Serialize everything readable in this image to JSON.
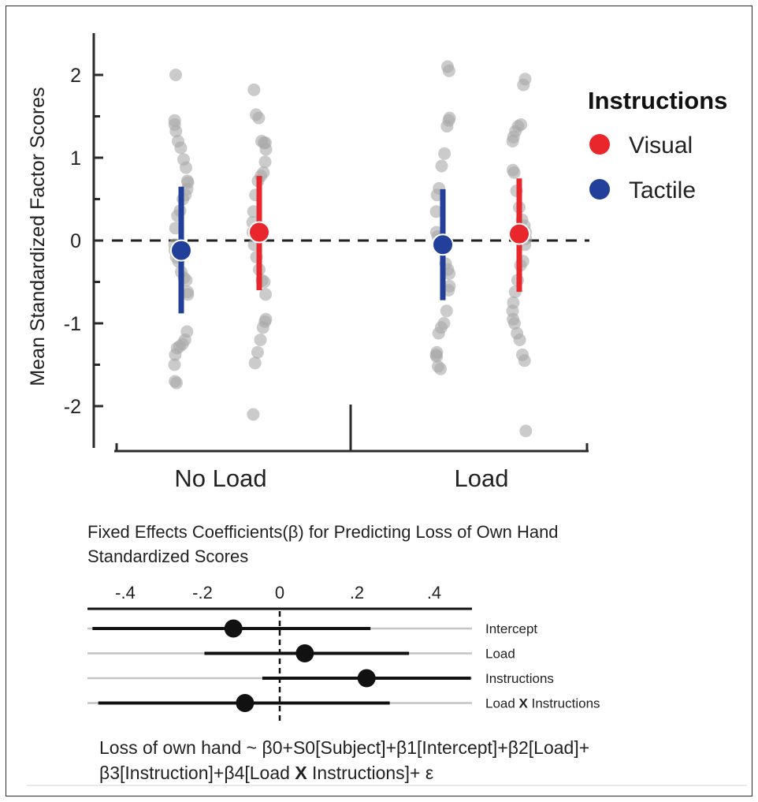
{
  "chart_data": [
    {
      "type": "scatter",
      "ylabel": "Mean  Standardized Factor Scores",
      "ylim": [
        -2.5,
        2.5
      ],
      "yticks": [
        2,
        1,
        0,
        -1,
        -2
      ],
      "ytick_labels": [
        "2",
        "1",
        "0",
        "-1",
        "-2"
      ],
      "reference_line": 0,
      "categories": [
        "No Load",
        "Load"
      ],
      "legend": {
        "title": "Instructions",
        "placement": "right",
        "entries": [
          {
            "label": "Visual",
            "color": "#e8262c"
          },
          {
            "label": "Tactile",
            "color": "#22409a"
          }
        ]
      },
      "series": [
        {
          "name": "Tactile",
          "color": "#22409a",
          "means": [
            -0.12,
            -0.05
          ],
          "ci_low": [
            -0.88,
            -0.72
          ],
          "ci_high": [
            0.65,
            0.62
          ],
          "points": [
            [
              2.0,
              1.45,
              1.4,
              1.32,
              1.2,
              1.12,
              0.98,
              0.88,
              0.72,
              0.7,
              0.62,
              0.55,
              0.5,
              0.36,
              0.3,
              0.15,
              -0.05,
              -0.12,
              -0.2,
              -0.25,
              -0.38,
              -0.45,
              -0.48,
              -0.62,
              -0.65,
              -1.1,
              -1.2,
              -1.25,
              -1.28,
              -1.3,
              -1.38,
              -1.5,
              -1.7,
              -1.72
            ],
            [
              2.1,
              2.05,
              1.48,
              1.45,
              1.38,
              1.05,
              0.9,
              0.63,
              0.55,
              0.35,
              0.1,
              0.05,
              0.02,
              -0.05,
              -0.28,
              -0.35,
              -0.4,
              -0.55,
              -0.6,
              -0.85,
              -1.0,
              -1.05,
              -1.12,
              -1.35,
              -1.38,
              -1.4,
              -1.52,
              -1.55
            ]
          ]
        },
        {
          "name": "Visual",
          "color": "#e8262c",
          "means": [
            0.1,
            0.08
          ],
          "ci_low": [
            -0.6,
            -0.62
          ],
          "ci_high": [
            0.78,
            0.75
          ],
          "points": [
            [
              1.82,
              1.52,
              1.48,
              1.2,
              1.18,
              1.18,
              1.1,
              0.95,
              0.82,
              0.78,
              0.72,
              0.55,
              0.35,
              0.22,
              0.1,
              -0.05,
              -0.2,
              -0.35,
              -0.48,
              -0.5,
              -0.65,
              -0.95,
              -0.98,
              -1.05,
              -1.2,
              -1.35,
              -1.48,
              -2.1
            ],
            [
              1.95,
              1.88,
              1.4,
              1.38,
              1.32,
              1.25,
              1.2,
              0.85,
              0.82,
              0.6,
              0.4,
              0.25,
              0.18,
              0.1,
              0.02,
              -0.05,
              -0.25,
              -0.3,
              -0.48,
              -0.62,
              -0.75,
              -0.85,
              -0.95,
              -1.0,
              -1.12,
              -1.2,
              -1.38,
              -1.45,
              -2.3
            ]
          ]
        }
      ]
    },
    {
      "type": "forest",
      "title": "Fixed Effects Coefficients(β) for Predicting Loss of Own Hand Standardized Scores",
      "title_lines": [
        "Fixed Effects Coefficients(β) for Predicting Loss of Own Hand",
        "Standardized Scores"
      ],
      "xlim": [
        -0.5,
        0.5
      ],
      "xticks": [
        -0.4,
        -0.2,
        0,
        0.2,
        0.4
      ],
      "xtick_labels": [
        "-.4",
        "-.2",
        "0",
        ".2",
        ".4"
      ],
      "reference_line": 0,
      "rows": [
        {
          "label": "Intercept",
          "label_parts": [
            "Intercept"
          ],
          "estimate": -0.12,
          "ci_low": -0.485,
          "ci_high": 0.235
        },
        {
          "label": "Load",
          "label_parts": [
            "Load"
          ],
          "estimate": 0.065,
          "ci_low": -0.195,
          "ci_high": 0.335
        },
        {
          "label": "Instructions",
          "label_parts": [
            "Instructions"
          ],
          "estimate": 0.225,
          "ci_low": -0.045,
          "ci_high": 0.495
        },
        {
          "label": "Load X Instructions",
          "label_parts": [
            "Load ",
            "X",
            " Instructions"
          ],
          "estimate": -0.09,
          "ci_low": -0.47,
          "ci_high": 0.285
        }
      ],
      "formula_lines": [
        [
          "Loss of own hand ~ β0+S0[Subject]+β1[Intercept]+β2[Load]+"
        ],
        [
          "β3[Instruction]+β4[Load ",
          "X",
          " Instructions]+ ε"
        ]
      ]
    }
  ]
}
